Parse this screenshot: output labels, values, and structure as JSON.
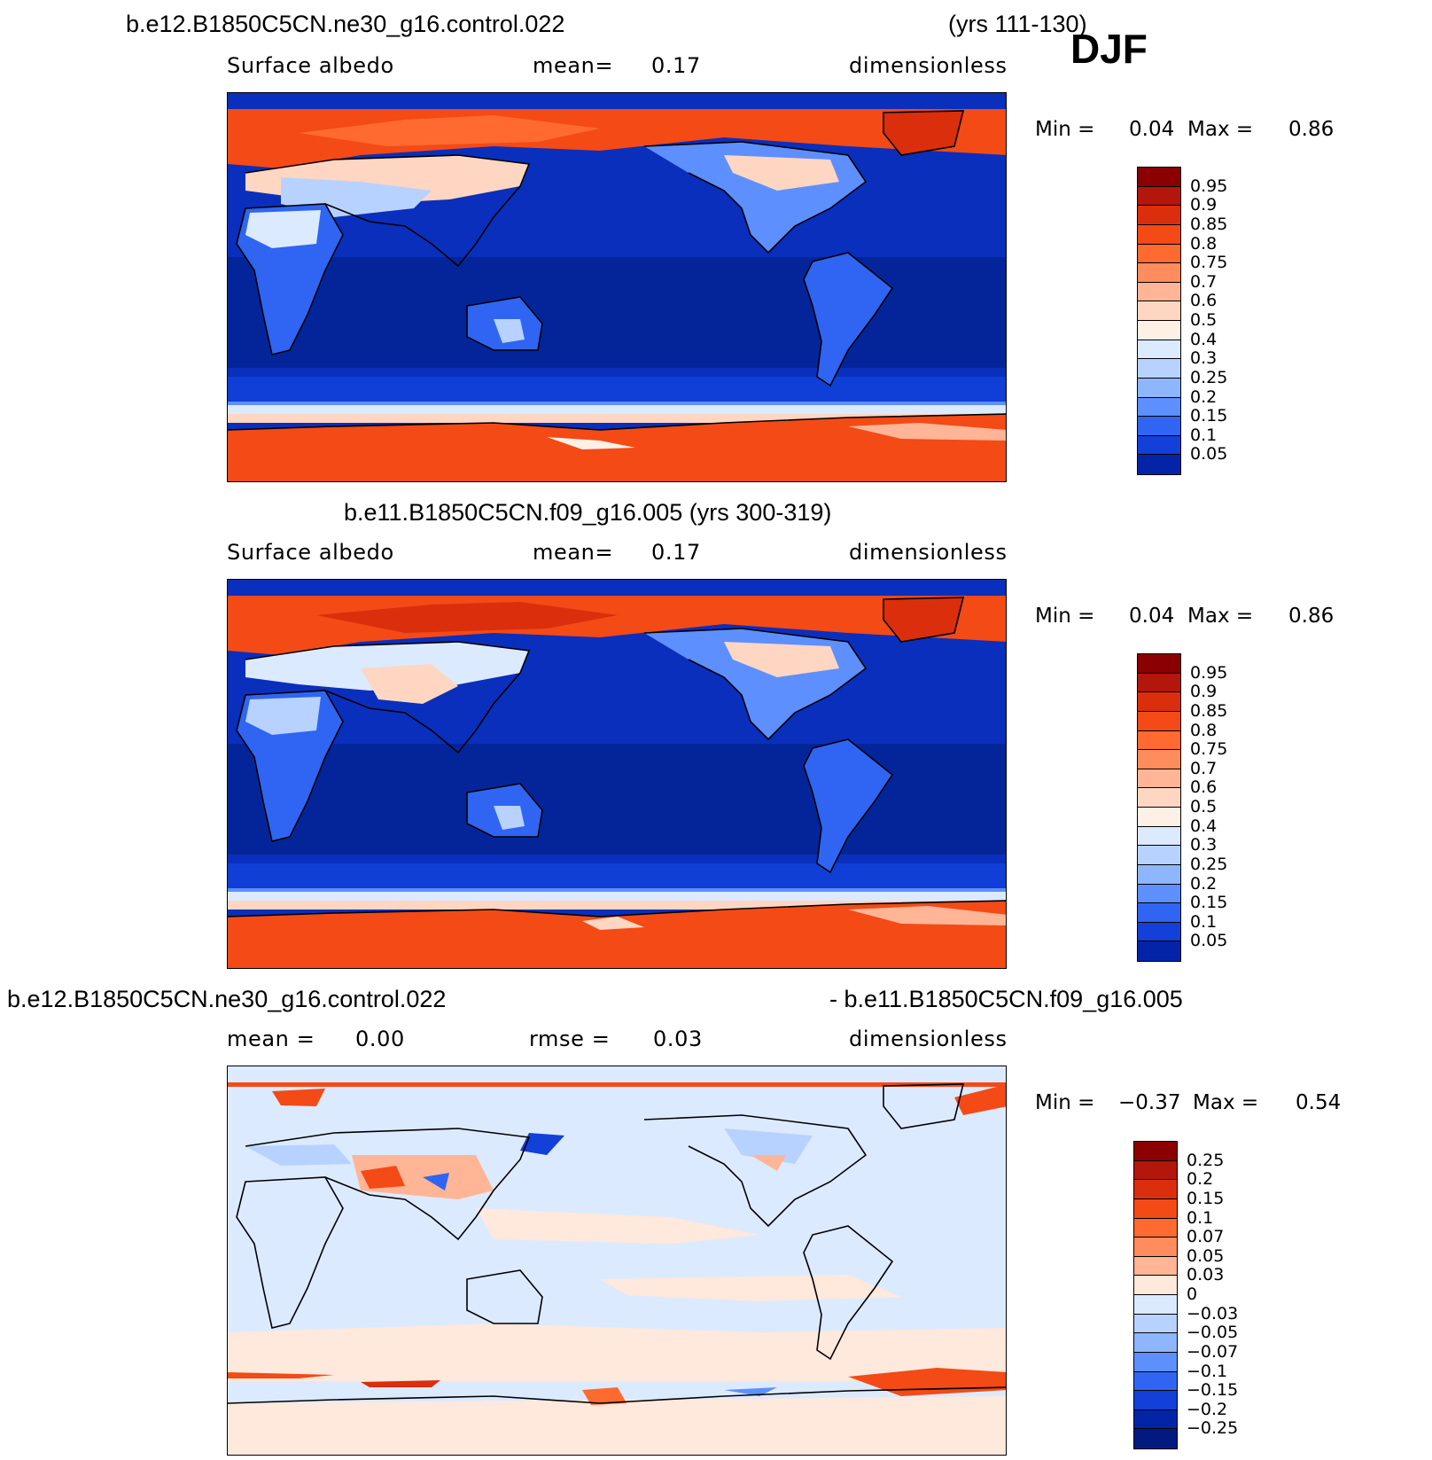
{
  "season": "DJF",
  "panels": [
    {
      "title_left": "b.e12.B1850C5CN.ne30_g16.control.022",
      "title_right": "(yrs 111-130)",
      "sub_left": "Surface  albedo",
      "sub_mid_label": "mean=",
      "sub_mid_value": "0.17",
      "sub_right": "dimensionless",
      "min_label": "Min  =",
      "min_value": "0.04",
      "max_label": "Max  =",
      "max_value": "0.86",
      "kind": "abs"
    },
    {
      "title_left": "b.e11.B1850C5CN.f09_g16.005 (yrs 300-319)",
      "title_right": "",
      "sub_left": "Surface  albedo",
      "sub_mid_label": "mean=",
      "sub_mid_value": "0.17",
      "sub_right": "dimensionless",
      "min_label": "Min  =",
      "min_value": "0.04",
      "max_label": "Max  =",
      "max_value": "0.86",
      "kind": "abs"
    },
    {
      "title_left": "b.e12.B1850C5CN.ne30_g16.control.022",
      "title_right": "- b.e11.B1850C5CN.f09_g16.005",
      "sub_left": "mean  =",
      "sub_left_value": "0.00",
      "sub_mid_label": "rmse  =",
      "sub_mid_value": "0.03",
      "sub_right": "dimensionless",
      "min_label": "Min  =",
      "min_value": "−0.37",
      "max_label": "Max  =",
      "max_value": "0.54",
      "kind": "diff"
    }
  ],
  "colorbars": {
    "abs": {
      "labels": [
        "0.95",
        "0.9",
        "0.85",
        "0.8",
        "0.75",
        "0.7",
        "0.6",
        "0.5",
        "0.4",
        "0.3",
        "0.25",
        "0.2",
        "0.15",
        "0.1",
        "0.05"
      ],
      "colors": [
        "#8b0000",
        "#b3160b",
        "#db2e0c",
        "#f34a16",
        "#ff6a30",
        "#ff8c5c",
        "#ffb596",
        "#ffd6c2",
        "#fff0e6",
        "#dceaff",
        "#b8d2ff",
        "#8eb6ff",
        "#5e8fff",
        "#2f65f2",
        "#1240d8",
        "#0424a8"
      ]
    },
    "diff": {
      "labels": [
        "0.25",
        "0.2",
        "0.15",
        "0.1",
        "0.07",
        "0.05",
        "0.03",
        "0",
        "−0.03",
        "−0.05",
        "−0.07",
        "−0.1",
        "−0.15",
        "−0.2",
        "−0.25"
      ],
      "colors": [
        "#8b0000",
        "#b3160b",
        "#db2e0c",
        "#f34a16",
        "#ff6a30",
        "#ff8c5c",
        "#ffb596",
        "#ffe8dc",
        "#dceaff",
        "#b8d2ff",
        "#8eb6ff",
        "#5e8fff",
        "#2f65f2",
        "#1240d8",
        "#0424a8",
        "#021a80"
      ]
    }
  },
  "chart_data": [
    {
      "type": "heatmap",
      "title": "b.e12.B1850C5CN.ne30_g16.control.022 (yrs 111-130)",
      "variable": "Surface albedo",
      "units": "dimensionless",
      "mean": 0.17,
      "min": 0.04,
      "max": 0.86,
      "contour_levels": [
        0.05,
        0.1,
        0.15,
        0.2,
        0.25,
        0.3,
        0.4,
        0.5,
        0.6,
        0.7,
        0.75,
        0.8,
        0.85,
        0.9,
        0.95
      ]
    },
    {
      "type": "heatmap",
      "title": "b.e11.B1850C5CN.f09_g16.005 (yrs 300-319)",
      "variable": "Surface albedo",
      "units": "dimensionless",
      "mean": 0.17,
      "min": 0.04,
      "max": 0.86,
      "contour_levels": [
        0.05,
        0.1,
        0.15,
        0.2,
        0.25,
        0.3,
        0.4,
        0.5,
        0.6,
        0.7,
        0.75,
        0.8,
        0.85,
        0.9,
        0.95
      ]
    },
    {
      "type": "heatmap",
      "title": "b.e12.B1850C5CN.ne30_g16.control.022 - b.e11.B1850C5CN.f09_g16.005",
      "units": "dimensionless",
      "mean": 0.0,
      "rmse": 0.03,
      "min": -0.37,
      "max": 0.54,
      "contour_levels": [
        -0.25,
        -0.2,
        -0.15,
        -0.1,
        -0.07,
        -0.05,
        -0.03,
        0,
        0.03,
        0.05,
        0.07,
        0.1,
        0.15,
        0.2,
        0.25
      ]
    }
  ]
}
